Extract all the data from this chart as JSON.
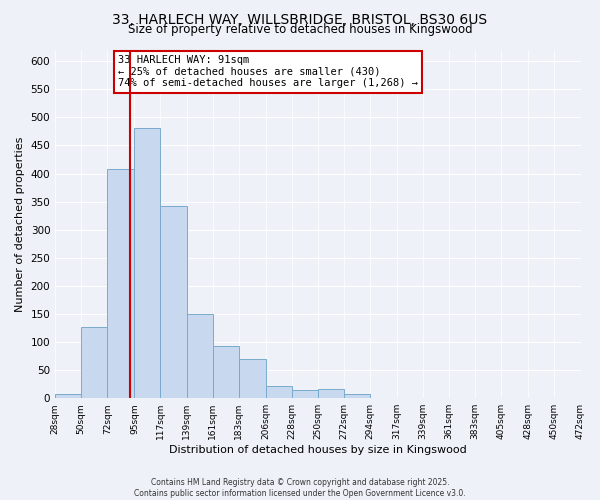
{
  "title_line1": "33, HARLECH WAY, WILLSBRIDGE, BRISTOL, BS30 6US",
  "title_line2": "Size of property relative to detached houses in Kingswood",
  "xlabel": "Distribution of detached houses by size in Kingswood",
  "ylabel": "Number of detached properties",
  "bar_edges": [
    28,
    50,
    72,
    95,
    117,
    139,
    161,
    183,
    206,
    228,
    250,
    272,
    294,
    317,
    339,
    361,
    383,
    405,
    428,
    450,
    472
  ],
  "bar_heights": [
    8,
    127,
    408,
    482,
    343,
    150,
    93,
    70,
    21,
    14,
    16,
    8,
    1,
    0,
    0,
    0,
    0,
    0,
    0,
    1
  ],
  "bar_color": "#c8d8ee",
  "bar_edge_color": "#7aabcc",
  "vline_x": 91,
  "vline_color": "#cc0000",
  "ylim": [
    0,
    620
  ],
  "annotation_title": "33 HARLECH WAY: 91sqm",
  "annotation_line1": "← 25% of detached houses are smaller (430)",
  "annotation_line2": "74% of semi-detached houses are larger (1,268) →",
  "annotation_box_color": "#ffffff",
  "annotation_box_edge": "#cc0000",
  "tick_labels": [
    "28sqm",
    "50sqm",
    "72sqm",
    "95sqm",
    "117sqm",
    "139sqm",
    "161sqm",
    "183sqm",
    "206sqm",
    "228sqm",
    "250sqm",
    "272sqm",
    "294sqm",
    "317sqm",
    "339sqm",
    "361sqm",
    "383sqm",
    "405sqm",
    "428sqm",
    "450sqm",
    "472sqm"
  ],
  "yticks": [
    0,
    50,
    100,
    150,
    200,
    250,
    300,
    350,
    400,
    450,
    500,
    550,
    600
  ],
  "footnote1": "Contains HM Land Registry data © Crown copyright and database right 2025.",
  "footnote2": "Contains public sector information licensed under the Open Government Licence v3.0.",
  "background_color": "#eef2f8",
  "grid_color": "#ffffff",
  "title1_fontsize": 10,
  "title2_fontsize": 8.5,
  "ylabel_fontsize": 8,
  "xlabel_fontsize": 8,
  "tick_fontsize": 6.5,
  "ytick_fontsize": 7.5,
  "footnote_fontsize": 5.5,
  "ann_fontsize": 7.5
}
